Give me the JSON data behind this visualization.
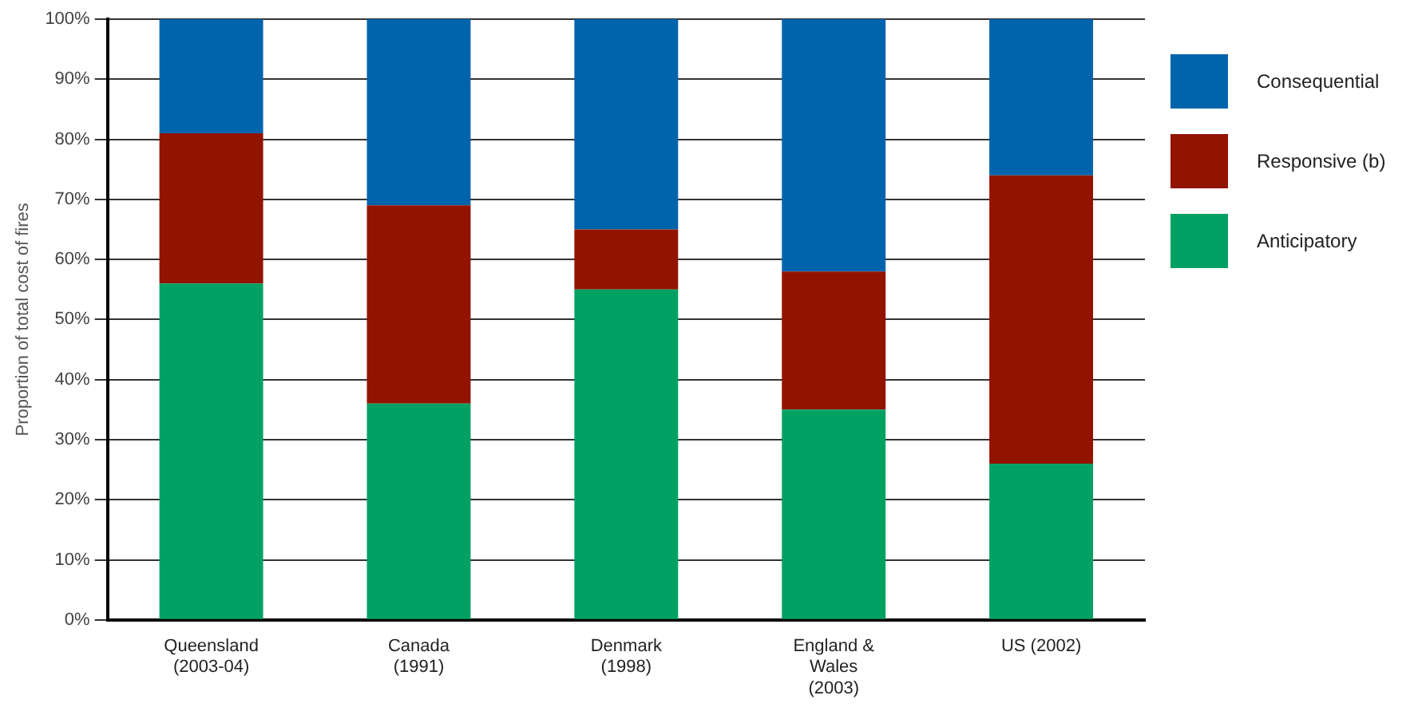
{
  "chart_data": {
    "type": "bar",
    "stacked": true,
    "ylabel": "Proportion of total cost of fires",
    "categories": [
      "Queensland\n(2003-04)",
      "Canada\n(1991)",
      "Denmark\n(1998)",
      "England &\nWales\n(2003)",
      "US (2002)"
    ],
    "series": [
      {
        "name": "Anticipatory",
        "color": "#00a163",
        "values": [
          56,
          36,
          55,
          35,
          26
        ]
      },
      {
        "name": "Responsive (b)",
        "color": "#921300",
        "values": [
          25,
          33,
          10,
          23,
          48
        ]
      },
      {
        "name": "Consequential",
        "color": "#0064ac",
        "values": [
          19,
          31,
          35,
          42,
          26
        ]
      }
    ],
    "ylim": [
      0,
      100
    ],
    "yticks": [
      {
        "value": 0,
        "label": "0%"
      },
      {
        "value": 10,
        "label": "10%"
      },
      {
        "value": 20,
        "label": "20%"
      },
      {
        "value": 30,
        "label": "30%"
      },
      {
        "value": 40,
        "label": "40%"
      },
      {
        "value": 50,
        "label": "50%"
      },
      {
        "value": 60,
        "label": "60%"
      },
      {
        "value": 70,
        "label": "70%"
      },
      {
        "value": 80,
        "label": "80%"
      },
      {
        "value": 90,
        "label": "90%"
      },
      {
        "value": 100,
        "label": "100%"
      }
    ],
    "grid": "y",
    "legend": "right"
  }
}
